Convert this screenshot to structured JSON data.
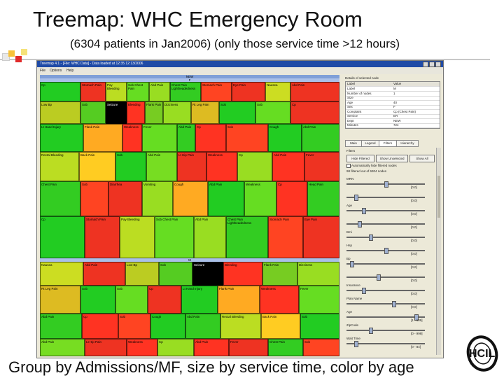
{
  "slide": {
    "title": "Treemap: WHC Emergency Room",
    "subtitle": "(6304 patients in Jan2006) (only those service time >12 hours)",
    "caption": "Group by Admissions/MF, size by service time, color by age"
  },
  "window": {
    "title": "Treemap 4.1 - [File: WHC Data] - Data loaded at 12:35 12:13/2006",
    "menus": [
      "File",
      "Options",
      "Help"
    ]
  },
  "treemap": {
    "group_headers": [
      "NEW",
      "F",
      "M"
    ],
    "cells": [
      {
        "label": "Cp",
        "color": "#22cc22"
      },
      {
        "label": "Stomach Pain",
        "color": "#ee3322"
      },
      {
        "label": "Pay Bleeding",
        "color": "#bbdd22"
      },
      {
        "label": "Sob Chest Pain",
        "color": "#66dd22"
      },
      {
        "label": "Abd Pain",
        "color": "#99dd22"
      },
      {
        "label": "Chest Pain Lightheadedness",
        "color": "#33cc22"
      },
      {
        "label": "Stomach Pain",
        "color": "#ff4422"
      },
      {
        "label": "Eye Pain",
        "color": "#ee3322"
      },
      {
        "label": "Nausea",
        "color": "#ccdd22"
      },
      {
        "label": "Abd Pain",
        "color": "#ee3322"
      },
      {
        "label": "Low Bp",
        "color": "#bbcc22"
      },
      {
        "label": "Sob",
        "color": "#55cc22"
      },
      {
        "label": "Seizure",
        "color": "#000000"
      },
      {
        "label": "Bleeding",
        "color": "#ff3322"
      },
      {
        "label": "Flank Pain",
        "color": "#77cc22"
      },
      {
        "label": "Dizziness",
        "color": "#99dd22"
      },
      {
        "label": "Rt Leg Pain",
        "color": "#ddbb22"
      },
      {
        "label": "Sob",
        "color": "#22cc22"
      },
      {
        "label": "Sob",
        "color": "#66dd22"
      },
      {
        "label": "Cp",
        "color": "#ee3322"
      },
      {
        "label": "Lt Hand Injury",
        "color": "#22cc22"
      },
      {
        "label": "Flank Pain",
        "color": "#ffaa22"
      },
      {
        "label": "Weakness",
        "color": "#ff3322"
      },
      {
        "label": "Fever",
        "color": "#66dd22"
      },
      {
        "label": "Abd Pain",
        "color": "#33cc22"
      },
      {
        "label": "Cp",
        "color": "#ff3322"
      },
      {
        "label": "Sob",
        "color": "#ff4422"
      },
      {
        "label": "Cough",
        "color": "#22cc22"
      },
      {
        "label": "Abd Pain",
        "color": "#33cc22"
      },
      {
        "label": "Rectal Bleeding",
        "color": "#bbdd22"
      },
      {
        "label": "Back Pain",
        "color": "#ffcc22"
      },
      {
        "label": "Sob",
        "color": "#22cc22"
      },
      {
        "label": "Abd Pain",
        "color": "#77dd22"
      },
      {
        "label": "Lt Hip Pain",
        "color": "#ee3322"
      },
      {
        "label": "Weakness",
        "color": "#ff3322"
      },
      {
        "label": "Cp",
        "color": "#99dd22"
      },
      {
        "label": "Abd Pain",
        "color": "#ff3322"
      },
      {
        "label": "Fever",
        "color": "#ee3322"
      },
      {
        "label": "Chest Pain",
        "color": "#33cc22"
      },
      {
        "label": "Sob",
        "color": "#ff4422"
      },
      {
        "label": "Diarrhea",
        "color": "#ee3322"
      },
      {
        "label": "Vomiting",
        "color": "#99dd22"
      },
      {
        "label": "Cough",
        "color": "#ffaa22"
      },
      {
        "label": "Abd Pain",
        "color": "#22cc22"
      },
      {
        "label": "Weakness",
        "color": "#66dd22"
      },
      {
        "label": "Cp",
        "color": "#ff3322"
      },
      {
        "label": "Head Pain",
        "color": "#33cc22"
      }
    ]
  },
  "panel": {
    "details_title": "Details of selected node",
    "table_headers": [
      "Label",
      "Value"
    ],
    "table_rows": [
      {
        "k": "Label",
        "v": "M"
      },
      {
        "k": "Number of nodes",
        "v": "1"
      },
      {
        "k": "Size",
        "v": ""
      },
      {
        "k": "Age",
        "v": "40"
      },
      {
        "k": "Sex",
        "v": "F"
      },
      {
        "k": "Complaint",
        "v": "Cp (Chest Pain)"
      },
      {
        "k": "Service",
        "v": "ER"
      },
      {
        "k": "Dept",
        "v": "NEW"
      },
      {
        "k": "Minutes",
        "v": "724"
      }
    ],
    "tabs": [
      "Main",
      "Legend",
      "Filters",
      "Hierarchy"
    ],
    "filters_label": "Filters",
    "buttons": [
      "Hide Filtered",
      "Show Unselected",
      "Show All"
    ],
    "checkbox_label": "Automatically hide filtered nodes",
    "count_text": "98 filtered out of 6304 nodes",
    "sliders": [
      {
        "name": "MRN",
        "range": "[0,0]",
        "level": 0.5
      },
      {
        "name": "",
        "range": "[0,0]",
        "level": 0.1
      },
      {
        "name": "Age",
        "range": "[0,0]",
        "level": 0.2
      },
      {
        "name": "",
        "range": "[0,0]",
        "level": 0.15
      },
      {
        "name": "Bmi",
        "range": "[0,0]",
        "level": 0.3
      },
      {
        "name": "Hsp",
        "range": "[0,0]",
        "level": 0.5
      },
      {
        "name": "Bp",
        "range": "[0,0]",
        "level": 0.05
      },
      {
        "name": "",
        "range": "[0,0]",
        "level": 0.4
      },
      {
        "name": "Insurance",
        "range": "[0,0]",
        "level": 0.2
      },
      {
        "name": "Plan Name",
        "range": "[0,0]",
        "level": 0.6
      },
      {
        "name": "Age",
        "range": "[1 - 109]",
        "level": 0.9
      },
      {
        "name": "ZipCode",
        "range": "[0 - 999]",
        "level": 0.3
      },
      {
        "name": "Wait Time",
        "range": "[0 - 84]",
        "level": 0.1
      }
    ],
    "colors": {
      "panel_bg": "#ece9d8",
      "accent": "#1f4aa6"
    }
  }
}
